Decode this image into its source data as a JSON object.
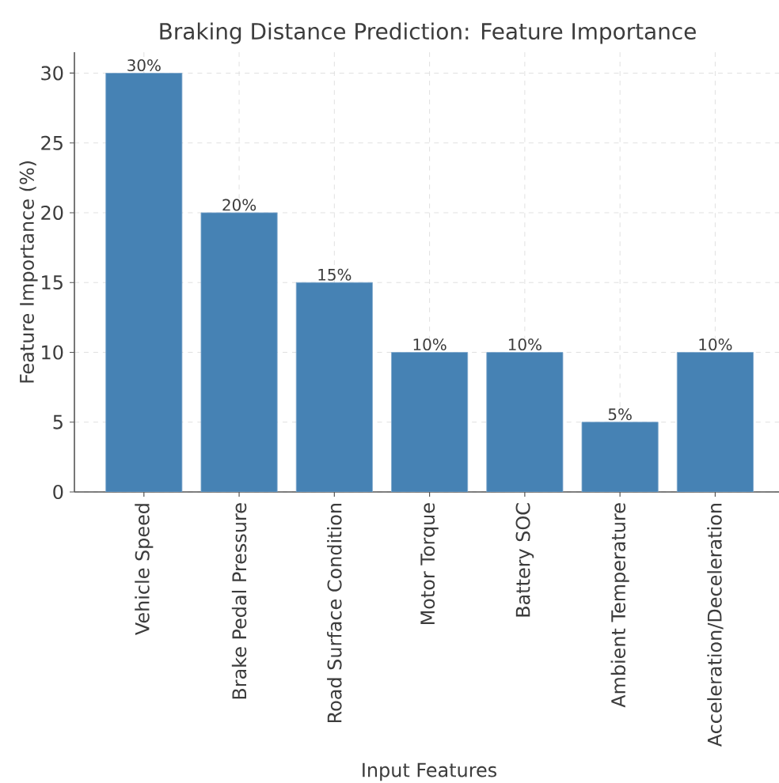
{
  "chart_data": {
    "type": "bar",
    "title": "Braking Distance Prediction: Feature Importance",
    "xlabel": "Input Features",
    "ylabel": "Feature Importance (%)",
    "categories": [
      "Vehicle Speed",
      "Brake Pedal Pressure",
      "Road Surface Condition",
      "Motor Torque",
      "Battery SOC",
      "Ambient Temperature",
      "Acceleration/Deceleration"
    ],
    "values": [
      30,
      20,
      15,
      10,
      10,
      5,
      10
    ],
    "value_labels": [
      "30%",
      "20%",
      "15%",
      "10%",
      "10%",
      "5%",
      "10%"
    ],
    "color": "#4682b4",
    "ylim": [
      0,
      31.5
    ],
    "yticks": [
      0,
      5,
      10,
      15,
      20,
      25,
      30
    ],
    "grid": true
  }
}
